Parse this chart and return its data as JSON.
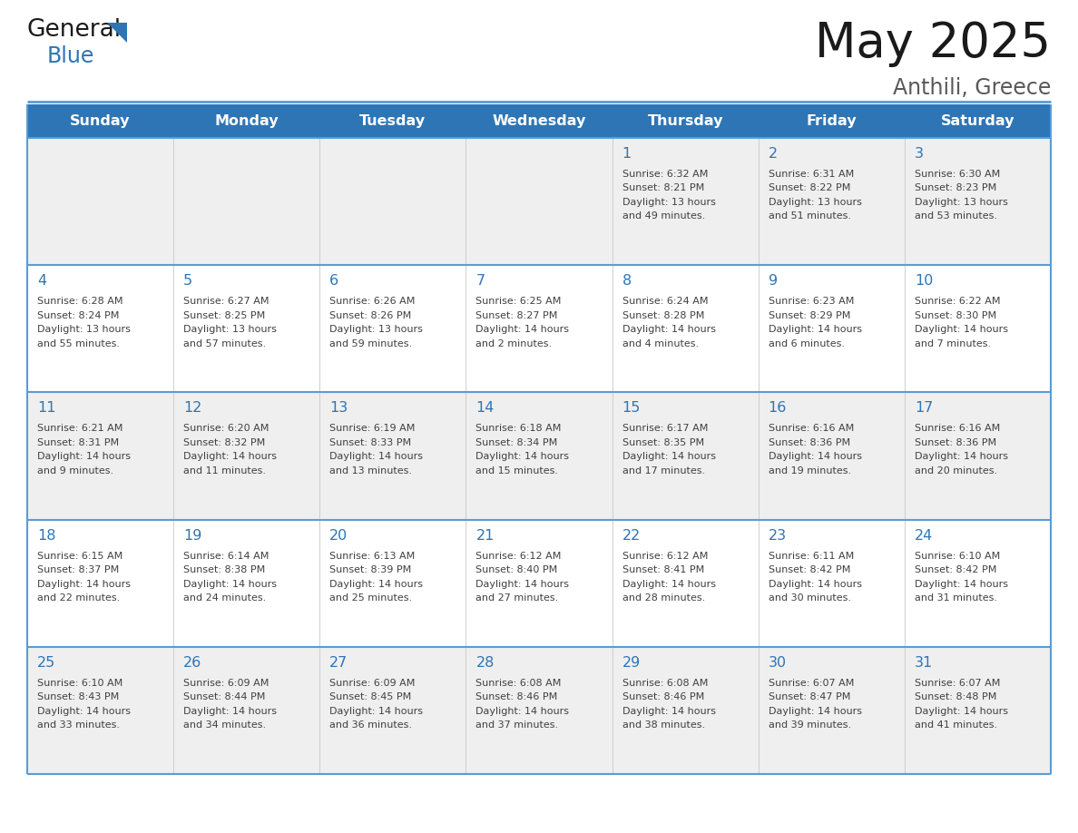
{
  "title": "May 2025",
  "subtitle": "Anthili, Greece",
  "header_color": "#2E75B6",
  "header_text_color": "#FFFFFF",
  "cell_bg_row0": "#EFEFEF",
  "cell_bg_row1": "#FFFFFF",
  "border_color": "#2E75B6",
  "border_line_color": "#5B9BD5",
  "day_headers": [
    "Sunday",
    "Monday",
    "Tuesday",
    "Wednesday",
    "Thursday",
    "Friday",
    "Saturday"
  ],
  "title_color": "#1a1a1a",
  "subtitle_color": "#595959",
  "day_num_color": "#2E75B6",
  "text_color": "#404040",
  "logo_general_color": "#1a1a1a",
  "logo_blue_color": "#2E75B6",
  "logo_triangle_color": "#2E75B6",
  "calendar": [
    [
      null,
      null,
      null,
      null,
      {
        "day": 1,
        "sunrise": "6:32 AM",
        "sunset": "8:21 PM",
        "daylight": "13 hours and 49 minutes"
      },
      {
        "day": 2,
        "sunrise": "6:31 AM",
        "sunset": "8:22 PM",
        "daylight": "13 hours and 51 minutes"
      },
      {
        "day": 3,
        "sunrise": "6:30 AM",
        "sunset": "8:23 PM",
        "daylight": "13 hours and 53 minutes"
      }
    ],
    [
      {
        "day": 4,
        "sunrise": "6:28 AM",
        "sunset": "8:24 PM",
        "daylight": "13 hours and 55 minutes"
      },
      {
        "day": 5,
        "sunrise": "6:27 AM",
        "sunset": "8:25 PM",
        "daylight": "13 hours and 57 minutes"
      },
      {
        "day": 6,
        "sunrise": "6:26 AM",
        "sunset": "8:26 PM",
        "daylight": "13 hours and 59 minutes"
      },
      {
        "day": 7,
        "sunrise": "6:25 AM",
        "sunset": "8:27 PM",
        "daylight": "14 hours and 2 minutes"
      },
      {
        "day": 8,
        "sunrise": "6:24 AM",
        "sunset": "8:28 PM",
        "daylight": "14 hours and 4 minutes"
      },
      {
        "day": 9,
        "sunrise": "6:23 AM",
        "sunset": "8:29 PM",
        "daylight": "14 hours and 6 minutes"
      },
      {
        "day": 10,
        "sunrise": "6:22 AM",
        "sunset": "8:30 PM",
        "daylight": "14 hours and 7 minutes"
      }
    ],
    [
      {
        "day": 11,
        "sunrise": "6:21 AM",
        "sunset": "8:31 PM",
        "daylight": "14 hours and 9 minutes"
      },
      {
        "day": 12,
        "sunrise": "6:20 AM",
        "sunset": "8:32 PM",
        "daylight": "14 hours and 11 minutes"
      },
      {
        "day": 13,
        "sunrise": "6:19 AM",
        "sunset": "8:33 PM",
        "daylight": "14 hours and 13 minutes"
      },
      {
        "day": 14,
        "sunrise": "6:18 AM",
        "sunset": "8:34 PM",
        "daylight": "14 hours and 15 minutes"
      },
      {
        "day": 15,
        "sunrise": "6:17 AM",
        "sunset": "8:35 PM",
        "daylight": "14 hours and 17 minutes"
      },
      {
        "day": 16,
        "sunrise": "6:16 AM",
        "sunset": "8:36 PM",
        "daylight": "14 hours and 19 minutes"
      },
      {
        "day": 17,
        "sunrise": "6:16 AM",
        "sunset": "8:36 PM",
        "daylight": "14 hours and 20 minutes"
      }
    ],
    [
      {
        "day": 18,
        "sunrise": "6:15 AM",
        "sunset": "8:37 PM",
        "daylight": "14 hours and 22 minutes"
      },
      {
        "day": 19,
        "sunrise": "6:14 AM",
        "sunset": "8:38 PM",
        "daylight": "14 hours and 24 minutes"
      },
      {
        "day": 20,
        "sunrise": "6:13 AM",
        "sunset": "8:39 PM",
        "daylight": "14 hours and 25 minutes"
      },
      {
        "day": 21,
        "sunrise": "6:12 AM",
        "sunset": "8:40 PM",
        "daylight": "14 hours and 27 minutes"
      },
      {
        "day": 22,
        "sunrise": "6:12 AM",
        "sunset": "8:41 PM",
        "daylight": "14 hours and 28 minutes"
      },
      {
        "day": 23,
        "sunrise": "6:11 AM",
        "sunset": "8:42 PM",
        "daylight": "14 hours and 30 minutes"
      },
      {
        "day": 24,
        "sunrise": "6:10 AM",
        "sunset": "8:42 PM",
        "daylight": "14 hours and 31 minutes"
      }
    ],
    [
      {
        "day": 25,
        "sunrise": "6:10 AM",
        "sunset": "8:43 PM",
        "daylight": "14 hours and 33 minutes"
      },
      {
        "day": 26,
        "sunrise": "6:09 AM",
        "sunset": "8:44 PM",
        "daylight": "14 hours and 34 minutes"
      },
      {
        "day": 27,
        "sunrise": "6:09 AM",
        "sunset": "8:45 PM",
        "daylight": "14 hours and 36 minutes"
      },
      {
        "day": 28,
        "sunrise": "6:08 AM",
        "sunset": "8:46 PM",
        "daylight": "14 hours and 37 minutes"
      },
      {
        "day": 29,
        "sunrise": "6:08 AM",
        "sunset": "8:46 PM",
        "daylight": "14 hours and 38 minutes"
      },
      {
        "day": 30,
        "sunrise": "6:07 AM",
        "sunset": "8:47 PM",
        "daylight": "14 hours and 39 minutes"
      },
      {
        "day": 31,
        "sunrise": "6:07 AM",
        "sunset": "8:48 PM",
        "daylight": "14 hours and 41 minutes"
      }
    ]
  ]
}
